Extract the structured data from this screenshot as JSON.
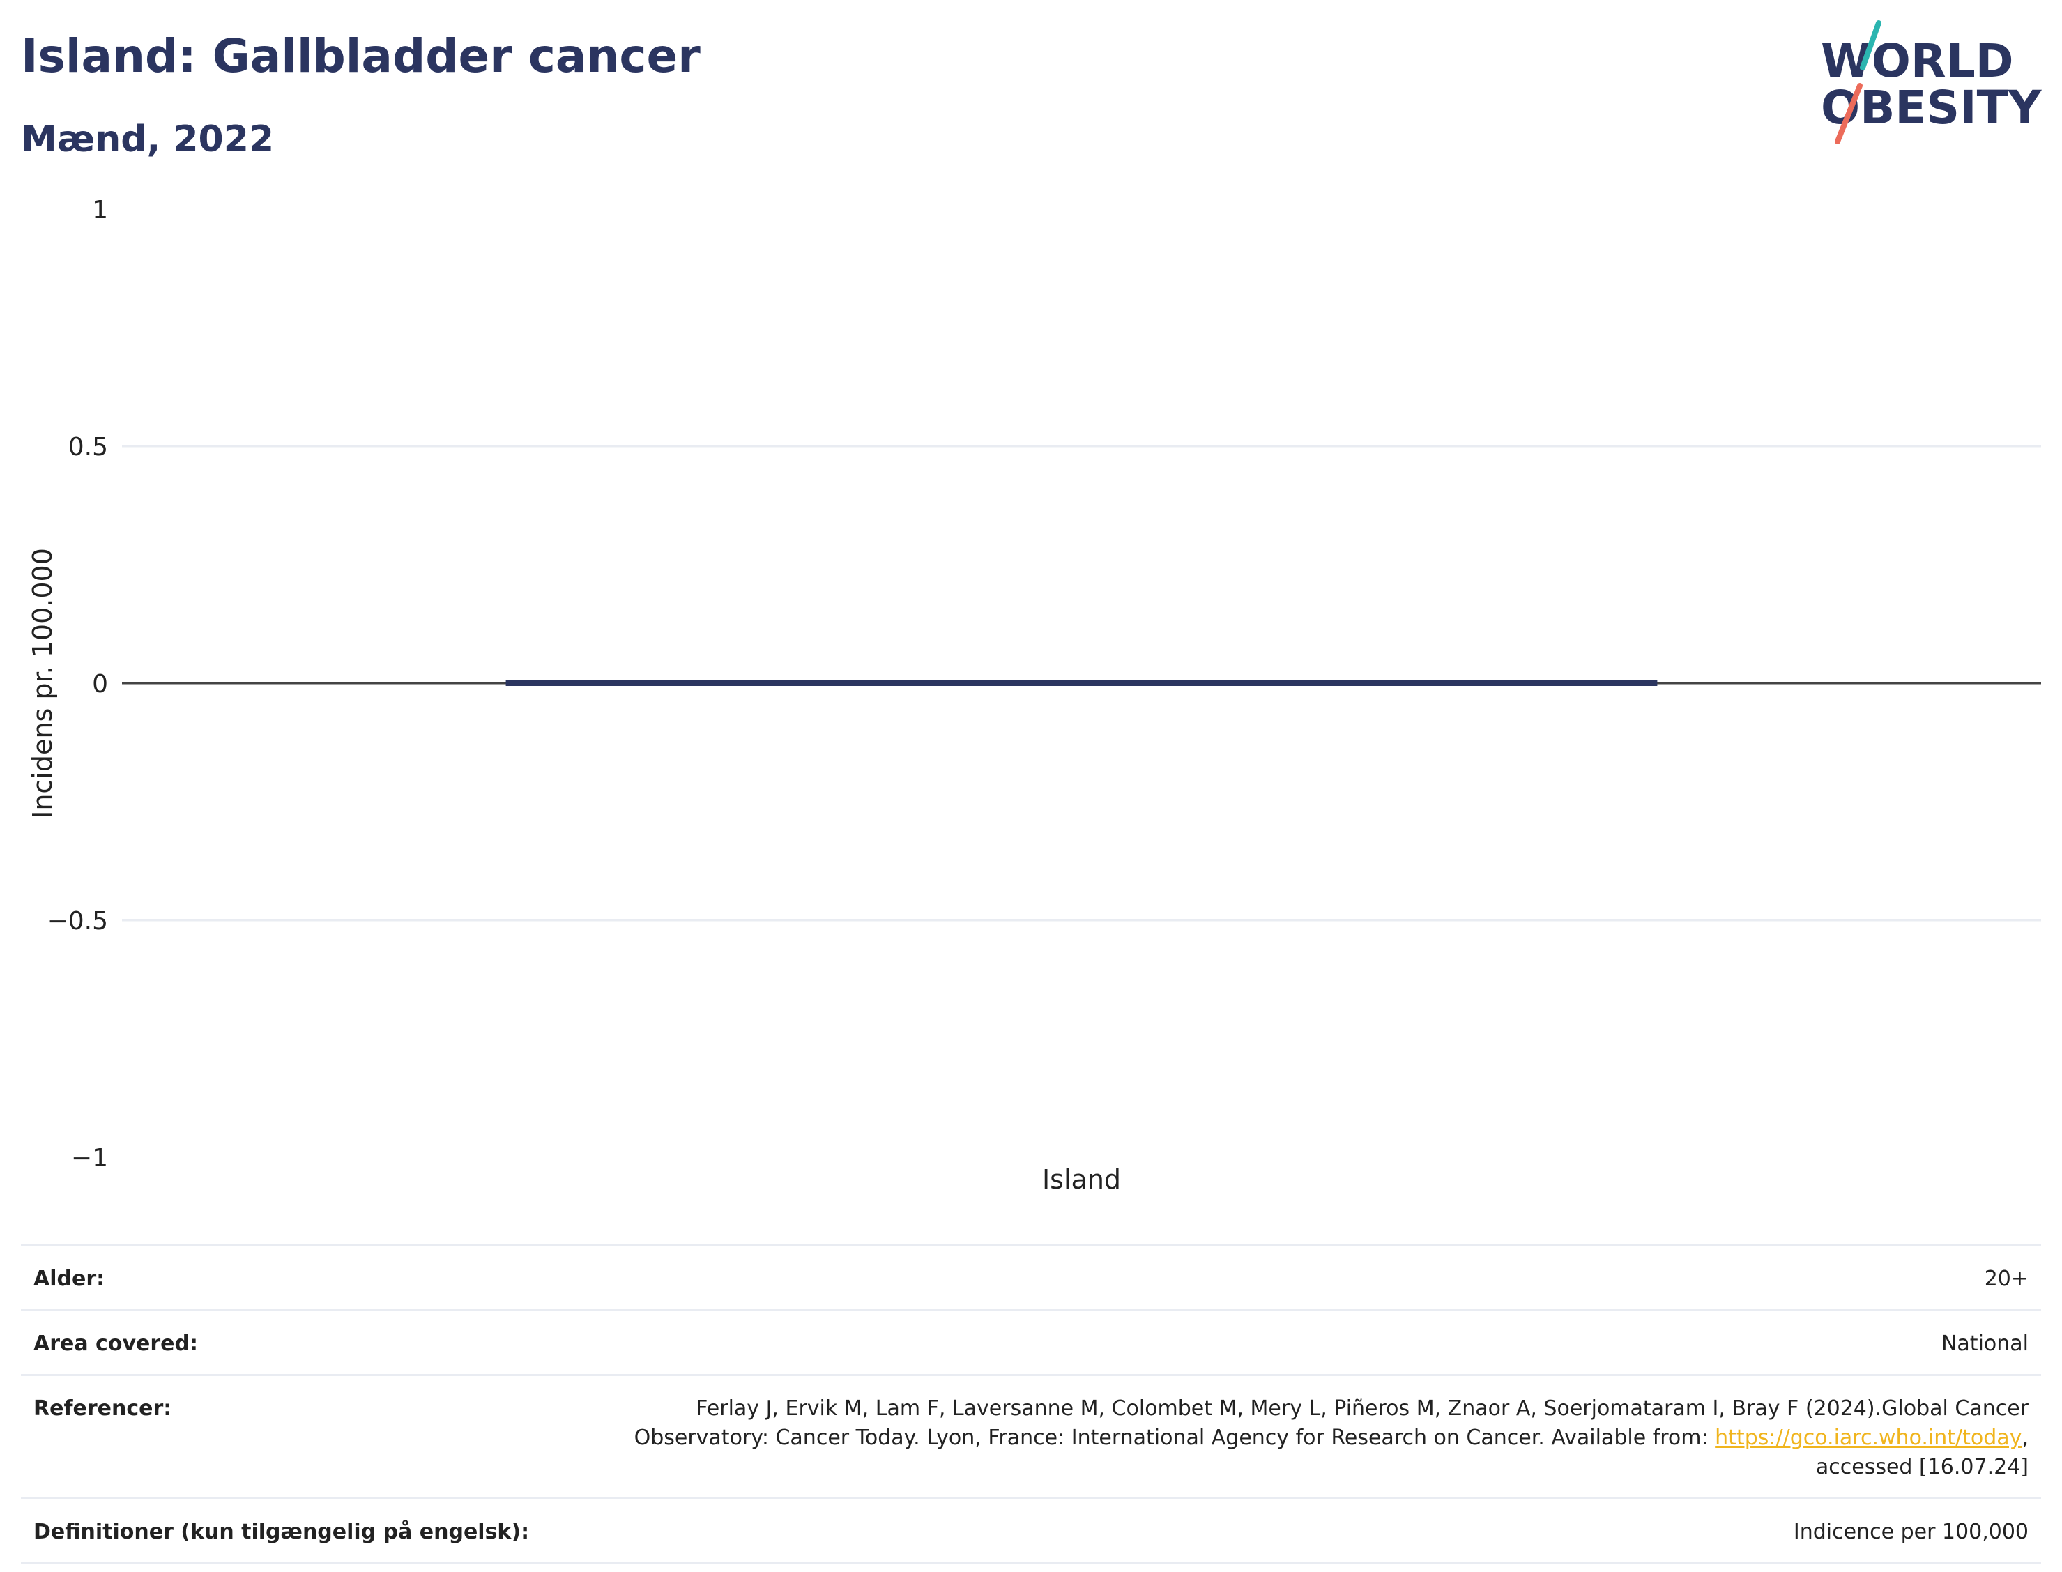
{
  "header": {
    "title": "Island: Gallbladder cancer",
    "subtitle": "Mænd, 2022"
  },
  "logo": {
    "line1": "WORLD",
    "line2": "OBESITY",
    "colors": {
      "text": "#2b3560",
      "slash_top": "#2bb5b0",
      "slash_bottom": "#ec6b5a"
    }
  },
  "chart_data": {
    "type": "bar",
    "categories": [
      "Island"
    ],
    "values": [
      0
    ],
    "ylabel": "Incidens pr. 100.000",
    "xlabel": "",
    "ylim": [
      -1,
      1
    ],
    "yticks": [
      1,
      0.5,
      0,
      -0.5,
      -1
    ],
    "ytick_labels": [
      "1",
      "0.5",
      "0",
      "−0.5",
      "−1"
    ],
    "grid": true,
    "bar_color": "#2b3560"
  },
  "meta": {
    "rows": [
      {
        "key": "Alder:",
        "value": "20+"
      },
      {
        "key": "Area covered:",
        "value": "National"
      },
      {
        "key": "Referencer:",
        "value_before": "Ferlay J, Ervik M, Lam F, Laversanne M, Colombet M, Mery L, Piñeros M, Znaor A, Soerjomataram I, Bray F (2024).Global Cancer Observatory: Cancer Today. Lyon, France: International Agency for Research on Cancer. Available from: ",
        "link": "https://gco.iarc.who.int/today",
        "value_after": ", accessed [16.07.24]"
      },
      {
        "key": "Definitioner (kun tilgængelig på engelsk):",
        "value": "Indicence per 100,000"
      }
    ]
  }
}
